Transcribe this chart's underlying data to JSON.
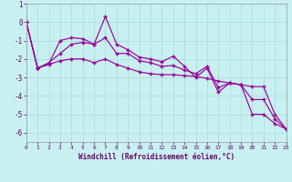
{
  "xlabel": "Windchill (Refroidissement éolien,°C)",
  "bg_color": "#c8f0f0",
  "grid_color": "#b0e0e0",
  "line_color": "#990099",
  "x_values": [
    0,
    1,
    2,
    3,
    4,
    5,
    6,
    7,
    8,
    9,
    10,
    11,
    12,
    13,
    14,
    15,
    16,
    17,
    18,
    19,
    20,
    21,
    22,
    23
  ],
  "line1": [
    0.0,
    -2.5,
    -2.2,
    -1.7,
    -1.2,
    -1.1,
    -1.2,
    0.3,
    -1.2,
    -1.5,
    -1.9,
    -2.0,
    -2.15,
    -1.85,
    -2.4,
    -3.0,
    -2.5,
    -3.8,
    -3.3,
    -3.4,
    -5.0,
    -5.0,
    -5.5,
    -5.8
  ],
  "line2": [
    0.0,
    -2.5,
    -2.3,
    -2.1,
    -2.0,
    -2.0,
    -2.2,
    -2.0,
    -2.3,
    -2.5,
    -2.7,
    -2.8,
    -2.85,
    -2.85,
    -2.9,
    -2.95,
    -3.05,
    -3.2,
    -3.3,
    -3.4,
    -3.5,
    -3.5,
    -5.0,
    -5.8
  ],
  "line3": [
    0.0,
    -2.5,
    -2.25,
    -1.0,
    -0.85,
    -0.9,
    -1.2,
    -0.85,
    -1.7,
    -1.7,
    -2.1,
    -2.2,
    -2.4,
    -2.35,
    -2.6,
    -2.8,
    -2.4,
    -3.55,
    -3.3,
    -3.4,
    -4.2,
    -4.2,
    -5.25,
    -5.8
  ],
  "xlim": [
    0,
    23
  ],
  "ylim": [
    -6.5,
    1.0
  ],
  "yticks": [
    1,
    0,
    -1,
    -2,
    -3,
    -4,
    -5,
    -6
  ],
  "xticks": [
    0,
    1,
    2,
    3,
    4,
    5,
    6,
    7,
    8,
    9,
    10,
    11,
    12,
    13,
    14,
    15,
    16,
    17,
    18,
    19,
    20,
    21,
    22,
    23
  ]
}
